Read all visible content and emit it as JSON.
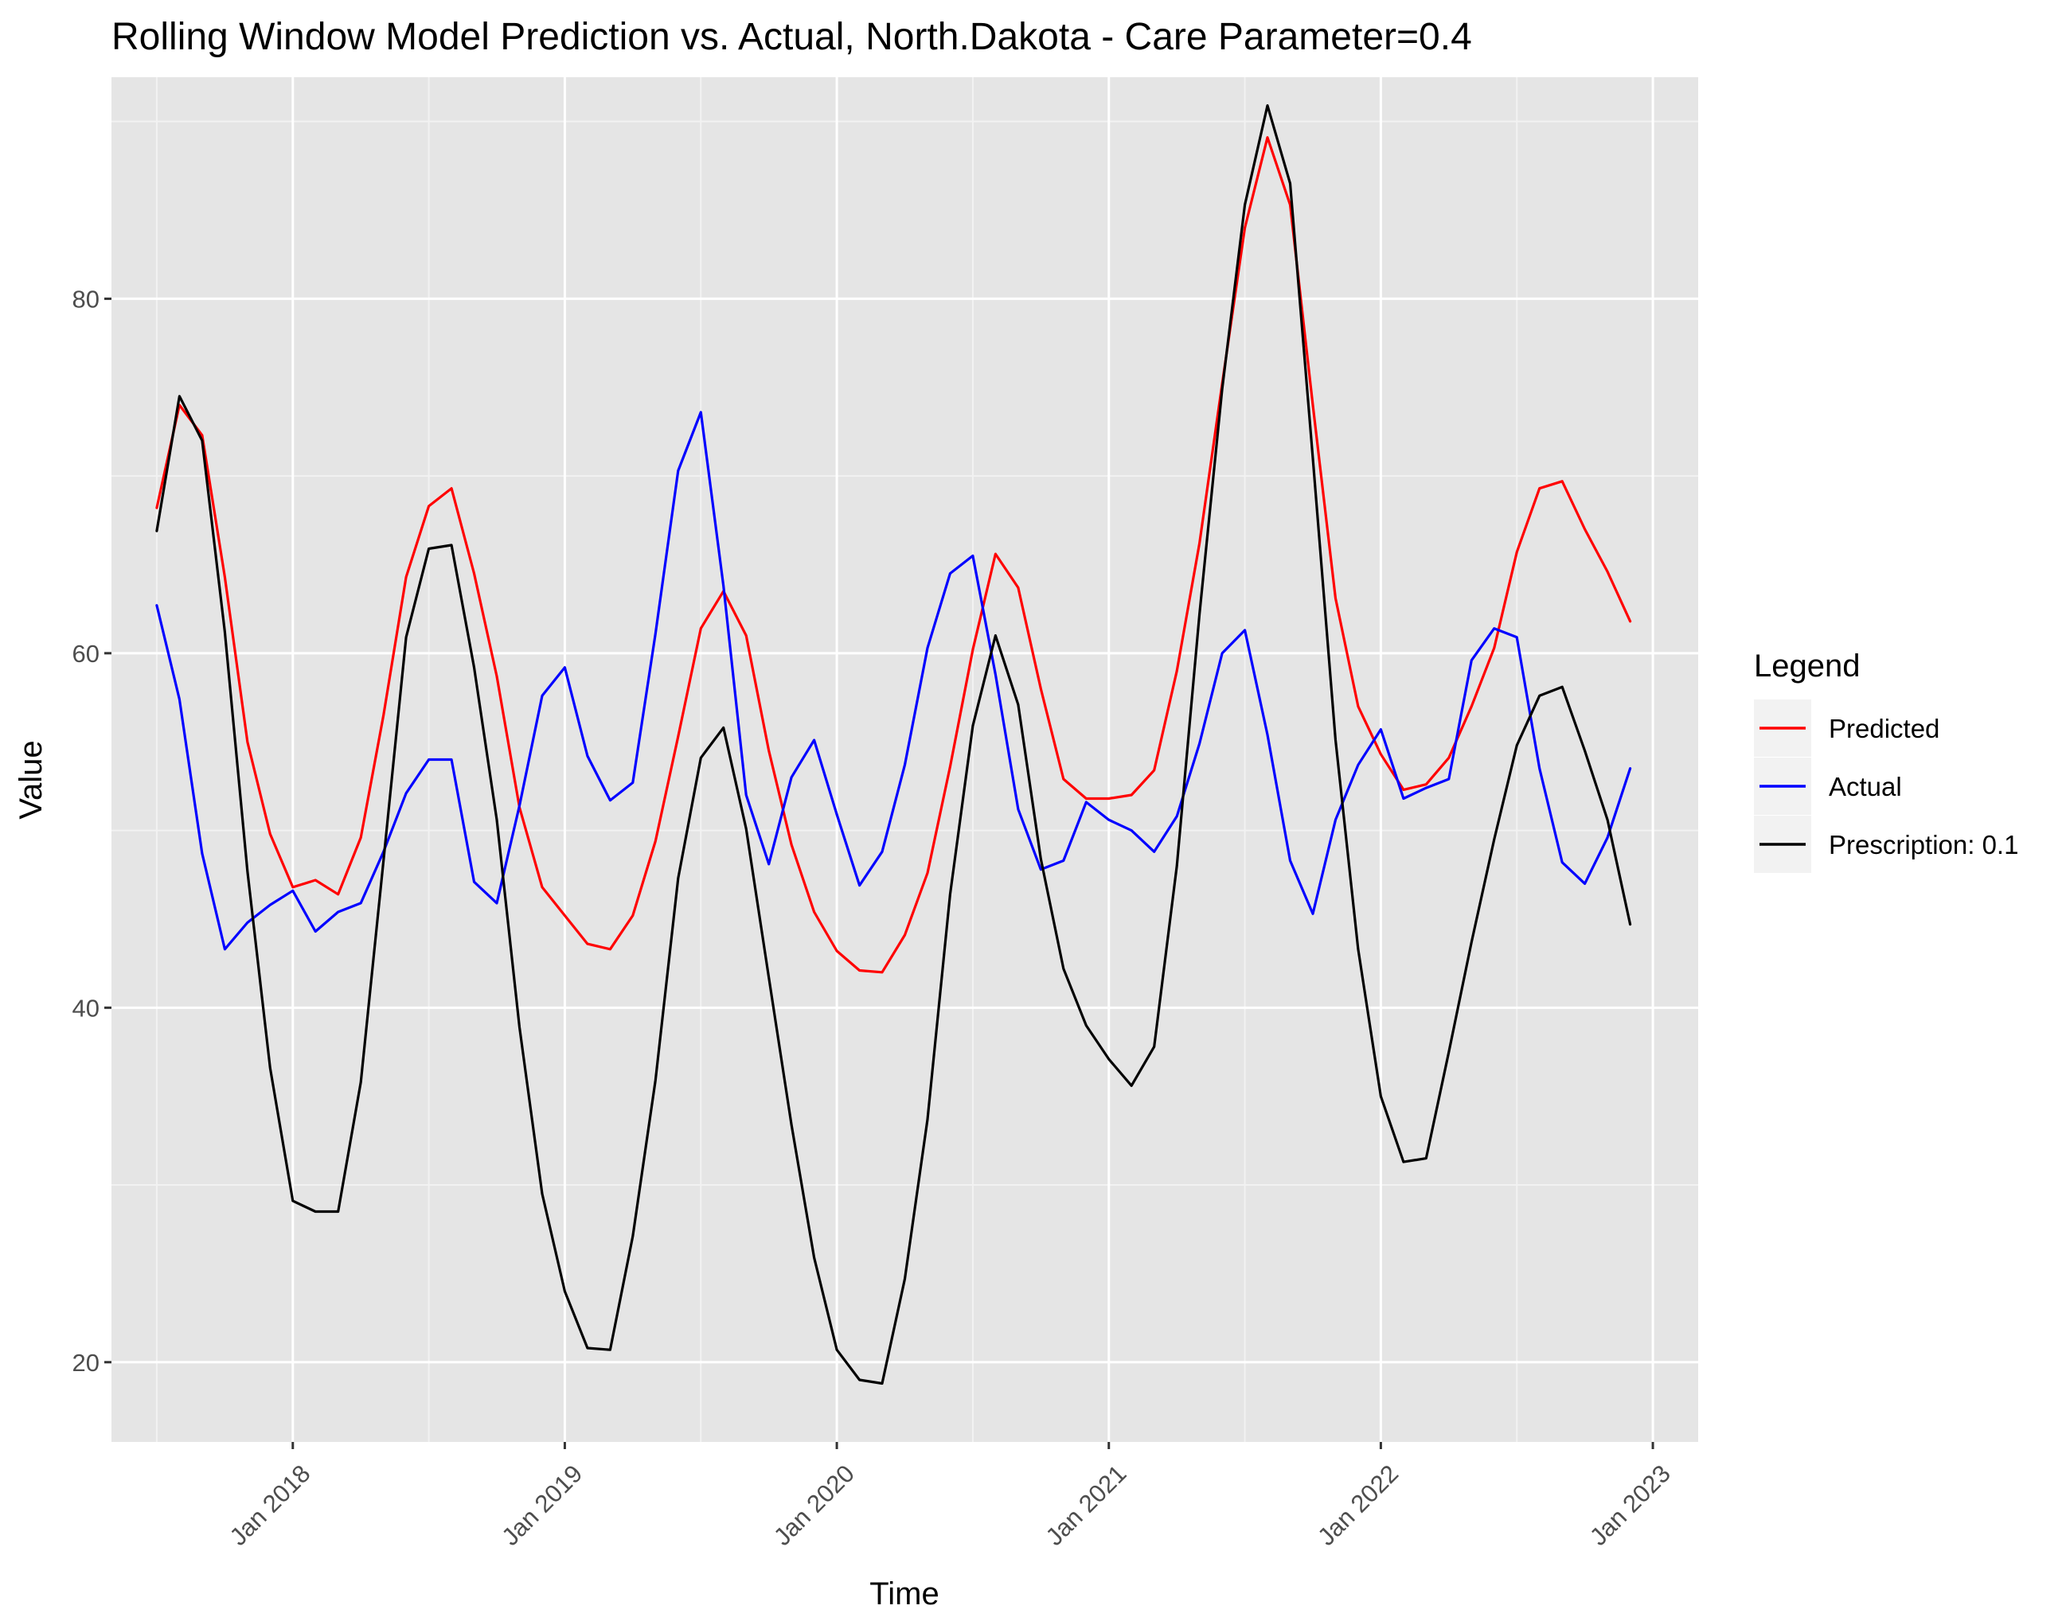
{
  "chart_data": {
    "type": "line",
    "title": "Rolling Window Model Prediction vs. Actual, North.Dakota - Care Parameter=0.4",
    "xlabel": "Time",
    "ylabel": "Value",
    "x_tick_labels": [
      "Jan 2018",
      "Jan 2019",
      "Jan 2020",
      "Jan 2021",
      "Jan 2022",
      "Jan 2023"
    ],
    "y_ticks": [
      20,
      40,
      60,
      80
    ],
    "ylim": [
      15.5,
      92.5
    ],
    "xlim": [
      "2017-05",
      "2023-03"
    ],
    "grid": true,
    "legend_position": "right",
    "legend_title": "Legend",
    "x": [
      "2017-07",
      "2017-08",
      "2017-09",
      "2017-10",
      "2017-11",
      "2017-12",
      "2018-01",
      "2018-02",
      "2018-03",
      "2018-04",
      "2018-05",
      "2018-06",
      "2018-07",
      "2018-08",
      "2018-09",
      "2018-10",
      "2018-11",
      "2018-12",
      "2019-01",
      "2019-02",
      "2019-03",
      "2019-04",
      "2019-05",
      "2019-06",
      "2019-07",
      "2019-08",
      "2019-09",
      "2019-10",
      "2019-11",
      "2019-12",
      "2020-01",
      "2020-02",
      "2020-03",
      "2020-04",
      "2020-05",
      "2020-06",
      "2020-07",
      "2020-08",
      "2020-09",
      "2020-10",
      "2020-11",
      "2020-12",
      "2021-01",
      "2021-02",
      "2021-03",
      "2021-04",
      "2021-05",
      "2021-06",
      "2021-07",
      "2021-08",
      "2021-09",
      "2021-10",
      "2021-11",
      "2021-12",
      "2022-01",
      "2022-02",
      "2022-03",
      "2022-04",
      "2022-05",
      "2022-06",
      "2022-07",
      "2022-08",
      "2022-09",
      "2022-10",
      "2022-11",
      "2022-12"
    ],
    "series": [
      {
        "name": "Predicted",
        "color": "#ff0000",
        "values": [
          68.2,
          74.0,
          72.3,
          64.3,
          55.0,
          49.8,
          46.8,
          47.2,
          46.4,
          49.6,
          56.5,
          64.3,
          68.3,
          69.3,
          64.5,
          58.7,
          51.3,
          46.8,
          45.2,
          43.6,
          43.3,
          45.2,
          49.4,
          55.3,
          61.4,
          63.5,
          61.0,
          54.5,
          49.2,
          45.4,
          43.2,
          42.1,
          42.0,
          44.1,
          47.6,
          53.6,
          60.2,
          65.6,
          63.7,
          58.0,
          52.9,
          51.8,
          51.8,
          52.0,
          53.4,
          59.0,
          66.2,
          75.2,
          84.0,
          89.1,
          85.3,
          74.0,
          63.1,
          57.0,
          54.3,
          52.3,
          52.6,
          54.1,
          57.0,
          60.3,
          65.7,
          69.3,
          69.7,
          67.0,
          64.6,
          61.8
        ]
      },
      {
        "name": "Actual",
        "color": "#0000ff",
        "values": [
          62.7,
          57.4,
          48.7,
          43.3,
          44.8,
          45.8,
          46.6,
          44.3,
          45.4,
          45.9,
          48.8,
          52.1,
          54.0,
          54.0,
          47.1,
          45.9,
          51.4,
          57.6,
          59.2,
          54.2,
          51.7,
          52.7,
          61.1,
          70.3,
          73.6,
          63.8,
          52.0,
          48.1,
          53.0,
          55.1,
          50.9,
          46.9,
          48.8,
          53.7,
          60.3,
          64.5,
          65.5,
          58.8,
          51.2,
          47.8,
          48.3,
          51.6,
          50.6,
          50.0,
          48.8,
          50.8,
          54.9,
          60.0,
          61.3,
          55.4,
          48.3,
          45.3,
          50.6,
          53.7,
          55.7,
          51.8,
          52.4,
          52.9,
          59.6,
          61.4,
          60.9,
          53.5,
          48.2,
          47.0,
          49.6,
          53.5
        ]
      },
      {
        "name": "Prescription: 0.1",
        "color": "#000000",
        "values": [
          66.9,
          74.5,
          72.0,
          61.2,
          47.7,
          36.6,
          29.1,
          28.5,
          28.5,
          35.8,
          48.3,
          60.9,
          65.9,
          66.1,
          59.2,
          50.6,
          38.9,
          29.5,
          24.0,
          20.8,
          20.7,
          27.1,
          35.9,
          47.3,
          54.1,
          55.8,
          50.1,
          41.7,
          33.4,
          25.9,
          20.7,
          19.0,
          18.8,
          24.7,
          33.7,
          46.4,
          55.9,
          61.0,
          57.1,
          48.4,
          42.2,
          39.0,
          37.1,
          35.6,
          37.8,
          48.0,
          62.2,
          74.9,
          85.3,
          90.9,
          86.5,
          71.0,
          55.1,
          43.3,
          35.0,
          31.3,
          31.5,
          37.5,
          43.7,
          49.5,
          54.8,
          57.6,
          58.1,
          54.5,
          50.6,
          44.7
        ]
      }
    ]
  }
}
